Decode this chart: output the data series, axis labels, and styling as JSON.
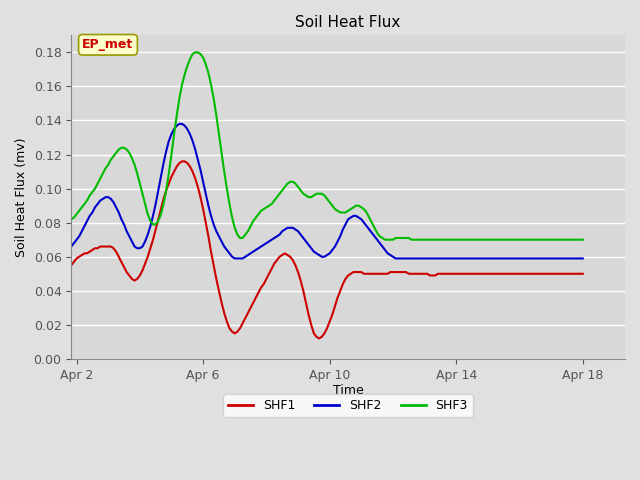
{
  "title": "Soil Heat Flux",
  "xlabel": "Time",
  "ylabel": "Soil Heat Flux (mv)",
  "ylim": [
    0.0,
    0.19
  ],
  "yticks": [
    0.0,
    0.02,
    0.04,
    0.06,
    0.08,
    0.1,
    0.12,
    0.14,
    0.16,
    0.18
  ],
  "bg_color": "#e0e0e0",
  "plot_bg_color": "#d8d8d8",
  "grid_color": "#ffffff",
  "annotation_text": "EP_met",
  "annotation_color": "#cc0000",
  "annotation_box_color": "#ffffcc",
  "annotation_box_edge": "#999900",
  "shf1_color": "#cc0000",
  "shf2_color": "#0000cc",
  "shf3_color": "#00bb00",
  "line_width": 1.5,
  "legend_labels": [
    "SHF1",
    "SHF2",
    "SHF3"
  ],
  "x_tick_labels": [
    "Apr 2",
    "Apr 6",
    "Apr 10",
    "Apr 14",
    "Apr 18"
  ],
  "x_tick_positions": [
    2,
    50,
    98,
    146,
    194
  ],
  "x_lim": [
    0,
    210
  ],
  "shf1": [
    0.055,
    0.057,
    0.059,
    0.06,
    0.061,
    0.062,
    0.062,
    0.063,
    0.064,
    0.065,
    0.065,
    0.066,
    0.066,
    0.066,
    0.066,
    0.066,
    0.065,
    0.063,
    0.06,
    0.057,
    0.054,
    0.051,
    0.049,
    0.047,
    0.046,
    0.047,
    0.049,
    0.052,
    0.056,
    0.06,
    0.065,
    0.07,
    0.076,
    0.082,
    0.088,
    0.094,
    0.099,
    0.103,
    0.107,
    0.11,
    0.113,
    0.115,
    0.116,
    0.116,
    0.115,
    0.113,
    0.11,
    0.106,
    0.101,
    0.095,
    0.088,
    0.08,
    0.072,
    0.063,
    0.055,
    0.047,
    0.04,
    0.033,
    0.027,
    0.022,
    0.018,
    0.016,
    0.015,
    0.016,
    0.018,
    0.021,
    0.024,
    0.027,
    0.03,
    0.033,
    0.036,
    0.039,
    0.042,
    0.044,
    0.047,
    0.05,
    0.053,
    0.056,
    0.058,
    0.06,
    0.061,
    0.062,
    0.061,
    0.06,
    0.058,
    0.055,
    0.051,
    0.046,
    0.04,
    0.033,
    0.026,
    0.02,
    0.015,
    0.013,
    0.012,
    0.013,
    0.015,
    0.018,
    0.022,
    0.026,
    0.031,
    0.036,
    0.04,
    0.044,
    0.047,
    0.049,
    0.05,
    0.051,
    0.051,
    0.051,
    0.051,
    0.05,
    0.05,
    0.05,
    0.05,
    0.05,
    0.05,
    0.05,
    0.05,
    0.05,
    0.05,
    0.051,
    0.051,
    0.051,
    0.051,
    0.051,
    0.051,
    0.051,
    0.05,
    0.05,
    0.05,
    0.05,
    0.05,
    0.05,
    0.05,
    0.05,
    0.049,
    0.049,
    0.049,
    0.05,
    0.05,
    0.05,
    0.05,
    0.05,
    0.05,
    0.05,
    0.05,
    0.05,
    0.05,
    0.05,
    0.05,
    0.05,
    0.05,
    0.05,
    0.05,
    0.05,
    0.05,
    0.05,
    0.05,
    0.05,
    0.05,
    0.05,
    0.05,
    0.05,
    0.05,
    0.05,
    0.05,
    0.05,
    0.05,
    0.05,
    0.05,
    0.05,
    0.05,
    0.05,
    0.05,
    0.05,
    0.05,
    0.05,
    0.05,
    0.05,
    0.05,
    0.05,
    0.05,
    0.05,
    0.05,
    0.05,
    0.05,
    0.05,
    0.05,
    0.05,
    0.05,
    0.05,
    0.05,
    0.05,
    0.05
  ],
  "shf2": [
    0.066,
    0.068,
    0.07,
    0.072,
    0.075,
    0.078,
    0.081,
    0.084,
    0.086,
    0.089,
    0.091,
    0.093,
    0.094,
    0.095,
    0.095,
    0.094,
    0.092,
    0.089,
    0.086,
    0.082,
    0.079,
    0.075,
    0.072,
    0.069,
    0.066,
    0.065,
    0.065,
    0.066,
    0.069,
    0.073,
    0.078,
    0.084,
    0.091,
    0.099,
    0.107,
    0.115,
    0.122,
    0.128,
    0.132,
    0.135,
    0.137,
    0.138,
    0.138,
    0.137,
    0.135,
    0.132,
    0.128,
    0.123,
    0.117,
    0.111,
    0.104,
    0.097,
    0.09,
    0.084,
    0.079,
    0.075,
    0.072,
    0.069,
    0.066,
    0.064,
    0.062,
    0.06,
    0.059,
    0.059,
    0.059,
    0.059,
    0.06,
    0.061,
    0.062,
    0.063,
    0.064,
    0.065,
    0.066,
    0.067,
    0.068,
    0.069,
    0.07,
    0.071,
    0.072,
    0.073,
    0.075,
    0.076,
    0.077,
    0.077,
    0.077,
    0.076,
    0.075,
    0.073,
    0.071,
    0.069,
    0.067,
    0.065,
    0.063,
    0.062,
    0.061,
    0.06,
    0.06,
    0.061,
    0.062,
    0.064,
    0.066,
    0.069,
    0.072,
    0.076,
    0.079,
    0.082,
    0.083,
    0.084,
    0.084,
    0.083,
    0.082,
    0.08,
    0.078,
    0.076,
    0.074,
    0.072,
    0.07,
    0.068,
    0.066,
    0.064,
    0.062,
    0.061,
    0.06,
    0.059,
    0.059,
    0.059,
    0.059,
    0.059,
    0.059,
    0.059,
    0.059,
    0.059,
    0.059,
    0.059,
    0.059,
    0.059,
    0.059,
    0.059,
    0.059,
    0.059,
    0.059,
    0.059,
    0.059,
    0.059,
    0.059,
    0.059,
    0.059,
    0.059,
    0.059,
    0.059,
    0.059,
    0.059,
    0.059,
    0.059,
    0.059,
    0.059,
    0.059,
    0.059,
    0.059,
    0.059,
    0.059,
    0.059,
    0.059,
    0.059,
    0.059,
    0.059,
    0.059,
    0.059,
    0.059,
    0.059,
    0.059,
    0.059,
    0.059,
    0.059,
    0.059,
    0.059,
    0.059,
    0.059,
    0.059,
    0.059,
    0.059,
    0.059,
    0.059,
    0.059,
    0.059,
    0.059,
    0.059,
    0.059,
    0.059,
    0.059,
    0.059,
    0.059,
    0.059,
    0.059,
    0.059
  ],
  "shf3": [
    0.082,
    0.083,
    0.085,
    0.087,
    0.089,
    0.091,
    0.093,
    0.096,
    0.098,
    0.1,
    0.103,
    0.106,
    0.109,
    0.112,
    0.114,
    0.117,
    0.119,
    0.121,
    0.123,
    0.124,
    0.124,
    0.123,
    0.121,
    0.118,
    0.114,
    0.109,
    0.103,
    0.097,
    0.091,
    0.085,
    0.081,
    0.079,
    0.079,
    0.081,
    0.085,
    0.091,
    0.099,
    0.109,
    0.12,
    0.132,
    0.143,
    0.153,
    0.161,
    0.167,
    0.172,
    0.176,
    0.179,
    0.18,
    0.18,
    0.179,
    0.177,
    0.173,
    0.168,
    0.161,
    0.153,
    0.143,
    0.132,
    0.121,
    0.11,
    0.1,
    0.091,
    0.083,
    0.077,
    0.073,
    0.071,
    0.071,
    0.073,
    0.075,
    0.078,
    0.081,
    0.083,
    0.085,
    0.087,
    0.088,
    0.089,
    0.09,
    0.091,
    0.093,
    0.095,
    0.097,
    0.099,
    0.101,
    0.103,
    0.104,
    0.104,
    0.103,
    0.101,
    0.099,
    0.097,
    0.096,
    0.095,
    0.095,
    0.096,
    0.097,
    0.097,
    0.097,
    0.096,
    0.094,
    0.092,
    0.09,
    0.088,
    0.087,
    0.086,
    0.086,
    0.086,
    0.087,
    0.088,
    0.089,
    0.09,
    0.09,
    0.089,
    0.088,
    0.086,
    0.083,
    0.08,
    0.077,
    0.074,
    0.072,
    0.071,
    0.07,
    0.07,
    0.07,
    0.07,
    0.071,
    0.071,
    0.071,
    0.071,
    0.071,
    0.071,
    0.07,
    0.07,
    0.07,
    0.07,
    0.07,
    0.07,
    0.07,
    0.07,
    0.07,
    0.07,
    0.07,
    0.07,
    0.07,
    0.07,
    0.07,
    0.07,
    0.07,
    0.07,
    0.07,
    0.07,
    0.07,
    0.07,
    0.07,
    0.07,
    0.07,
    0.07,
    0.07,
    0.07,
    0.07,
    0.07,
    0.07,
    0.07,
    0.07,
    0.07,
    0.07,
    0.07,
    0.07,
    0.07,
    0.07,
    0.07,
    0.07,
    0.07,
    0.07,
    0.07,
    0.07,
    0.07,
    0.07,
    0.07,
    0.07,
    0.07,
    0.07,
    0.07,
    0.07,
    0.07,
    0.07,
    0.07,
    0.07,
    0.07,
    0.07,
    0.07,
    0.07,
    0.07,
    0.07,
    0.07,
    0.07,
    0.07
  ]
}
